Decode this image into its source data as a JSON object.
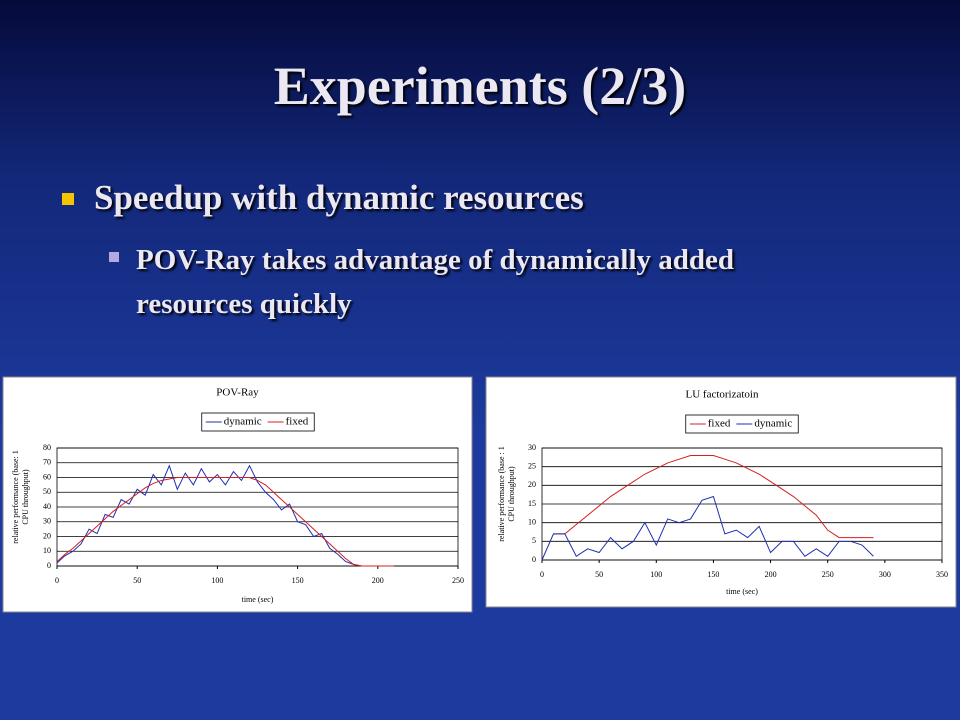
{
  "title": "Experiments (2/3)",
  "bullets": [
    {
      "text": "Speedup with dynamic resources",
      "sub": [
        "POV-Ray takes advantage of dynamically added resources quickly"
      ]
    }
  ],
  "chart_data": [
    {
      "type": "line",
      "title": "POV-Ray",
      "xlabel": "time (sec)",
      "ylabel": [
        "relative performance (base: 1",
        "CPU throughput)"
      ],
      "x": [
        0,
        5,
        10,
        15,
        20,
        25,
        30,
        35,
        40,
        45,
        50,
        55,
        60,
        65,
        70,
        75,
        80,
        85,
        90,
        95,
        100,
        105,
        110,
        115,
        120,
        125,
        130,
        135,
        140,
        145,
        150,
        155,
        160,
        165,
        170,
        175,
        180,
        185,
        190,
        195,
        200,
        205,
        210
      ],
      "series": [
        {
          "name": "dynamic",
          "color": "#1f2fb0",
          "values": [
            2,
            7,
            10,
            15,
            25,
            22,
            35,
            33,
            45,
            42,
            52,
            48,
            62,
            55,
            68,
            52,
            63,
            55,
            66,
            57,
            62,
            55,
            64,
            58,
            68,
            57,
            50,
            45,
            38,
            42,
            30,
            28,
            20,
            22,
            12,
            8,
            3,
            1,
            0,
            0,
            0,
            0,
            0
          ]
        },
        {
          "name": "fixed",
          "color": "#d42020",
          "values": [
            3,
            8,
            12,
            17,
            22,
            27,
            32,
            37,
            41,
            45,
            49,
            53,
            56,
            58,
            59,
            60,
            60,
            60,
            60,
            60,
            60,
            60,
            60,
            60,
            60,
            58,
            55,
            50,
            45,
            40,
            35,
            30,
            25,
            20,
            15,
            10,
            5,
            1,
            0,
            0,
            0,
            0,
            0
          ]
        }
      ],
      "xlim": [
        0,
        250
      ],
      "xticks": [
        0,
        50,
        100,
        150,
        200,
        250
      ],
      "ylim": [
        0,
        80
      ],
      "yticks": [
        0,
        10,
        20,
        30,
        40,
        50,
        60,
        70,
        80
      ],
      "grid": true,
      "legend": "top"
    },
    {
      "type": "line",
      "title": "LU factorizatoin",
      "xlabel": "time (sec)",
      "ylabel": [
        "relative performance (base : 1",
        "CPU throughput)"
      ],
      "x": [
        0,
        10,
        20,
        30,
        40,
        50,
        60,
        70,
        80,
        90,
        100,
        110,
        120,
        130,
        140,
        150,
        160,
        170,
        180,
        190,
        200,
        210,
        220,
        230,
        240,
        250,
        260,
        270,
        280,
        290
      ],
      "series": [
        {
          "name": "fixed",
          "color": "#d42020",
          "values": [
            null,
            7,
            7,
            9.5,
            12,
            14.5,
            17,
            19,
            21,
            23,
            24.5,
            26,
            27,
            28,
            28,
            28,
            27,
            26,
            24.5,
            23,
            21,
            19,
            17,
            14.5,
            12,
            8,
            6,
            6,
            6,
            6
          ]
        },
        {
          "name": "dynamic",
          "color": "#1f2fb0",
          "values": [
            0,
            7,
            7,
            1,
            3,
            2,
            6,
            3,
            5,
            10,
            4,
            11,
            10,
            11,
            16,
            17,
            7,
            8,
            6,
            9,
            2,
            5,
            5,
            1,
            3,
            1,
            5,
            5,
            4,
            1
          ]
        }
      ],
      "xlim": [
        0,
        350
      ],
      "xticks": [
        0,
        50,
        100,
        150,
        200,
        250,
        300,
        350
      ],
      "ylim": [
        0,
        30
      ],
      "yticks": [
        0,
        5,
        10,
        15,
        20,
        25,
        30
      ],
      "grid": true,
      "legend": "top"
    }
  ]
}
